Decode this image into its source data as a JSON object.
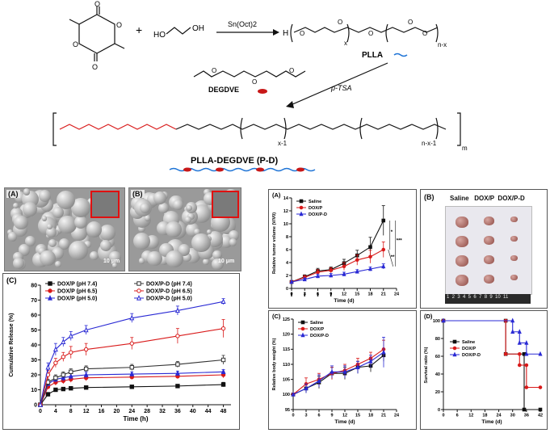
{
  "synthesis": {
    "reagent_catalyst": "Sn(Oct)2",
    "polymer1_label": "PLLA",
    "x_subscript": "x",
    "n_minus_x": "n-x",
    "h_label": "H",
    "ho_label": "HO",
    "oh_label": "OH",
    "crosslinker_label": "DEGDVE",
    "catalyst2": "p-TSA",
    "product_label": "PLLA-DEGDVE   (P-D)",
    "x_minus_1": "x-1",
    "n_x_1": "n-x-1",
    "m_subscript": "m",
    "colors": {
      "plla_wave": "#1f74d6",
      "degdve_dot": "#c81818"
    }
  },
  "sem": {
    "panel_a_label": "(A)",
    "panel_b_label": "(B)",
    "scale_a": "10 μm",
    "scale_b": "10 μm"
  },
  "chart_data": [
    {
      "id": "release",
      "panel_label": "(C)",
      "type": "line",
      "xlabel": "Time (h)",
      "ylabel": "Cumulative Release (%)",
      "xlim": [
        0,
        50
      ],
      "ylim": [
        0,
        80
      ],
      "xticks": [
        0,
        4,
        8,
        12,
        16,
        20,
        24,
        28,
        32,
        36,
        40,
        44,
        48
      ],
      "yticks": [
        0,
        10,
        20,
        30,
        40,
        50,
        60,
        70,
        80
      ],
      "legend_position": "top-left",
      "x": [
        0,
        2,
        4,
        6,
        8,
        12,
        24,
        36,
        48
      ],
      "series": [
        {
          "name": "DOX/P (pH 7.4)",
          "color": "#111111",
          "marker": "square",
          "filled": true,
          "values": [
            0,
            7,
            10,
            10.5,
            11,
            11.5,
            12,
            12.5,
            13.5
          ],
          "err": [
            0,
            1,
            1,
            1,
            1,
            1,
            1,
            1,
            1.5
          ]
        },
        {
          "name": "DOX/P (pH 6.5)",
          "color": "#d91a1a",
          "marker": "circle",
          "filled": true,
          "values": [
            0,
            12,
            15,
            16,
            17,
            18,
            18.5,
            19,
            20
          ],
          "err": [
            0,
            1.5,
            2,
            2,
            2,
            2,
            1.5,
            1.5,
            2
          ]
        },
        {
          "name": "DOX/P (pH 5.0)",
          "color": "#2a2ad4",
          "marker": "triangle",
          "filled": true,
          "values": [
            0,
            14,
            17,
            18,
            19,
            20,
            20.5,
            21,
            22
          ],
          "err": [
            0,
            1.5,
            2,
            2,
            2,
            2,
            1.5,
            1.5,
            1.5
          ]
        },
        {
          "name": "DOX/P-D (pH 7.4)",
          "color": "#333333",
          "marker": "square",
          "filled": false,
          "values": [
            0,
            15,
            18,
            20,
            22,
            24,
            25,
            27,
            30
          ],
          "err": [
            0,
            2,
            2,
            2,
            2,
            2,
            2,
            2,
            3
          ]
        },
        {
          "name": "DOX/P-D (pH 6.5)",
          "color": "#d91a1a",
          "marker": "circle",
          "filled": false,
          "values": [
            0,
            20,
            28,
            32,
            35,
            37,
            41,
            46,
            51
          ],
          "err": [
            0,
            3,
            3,
            3,
            4,
            4,
            4,
            5,
            6
          ]
        },
        {
          "name": "DOX/P-D (pH 5.0)",
          "color": "#2a2ad4",
          "marker": "triangle",
          "filled": false,
          "values": [
            0,
            25,
            37,
            42,
            46,
            50,
            58,
            63,
            69
          ],
          "err": [
            0,
            3,
            4,
            3,
            3,
            3,
            3,
            3,
            2
          ]
        }
      ]
    },
    {
      "id": "tumor_volume",
      "panel_label": "(A)",
      "type": "line",
      "xlabel": "Time (d)",
      "ylabel": "Relative tumor volume (V/V0)",
      "xlim": [
        0,
        24
      ],
      "ylim": [
        0,
        14
      ],
      "xticks": [
        0,
        3,
        6,
        9,
        12,
        15,
        18,
        21,
        24
      ],
      "yticks": [
        0,
        2,
        4,
        6,
        8,
        10,
        12,
        14
      ],
      "legend_position": "top-left",
      "dose_days": [
        0,
        3,
        6,
        9
      ],
      "annotations": [
        "*",
        "**",
        "***"
      ],
      "x": [
        0,
        3,
        6,
        9,
        12,
        15,
        18,
        21
      ],
      "series": [
        {
          "name": "Saline",
          "color": "#111111",
          "marker": "square",
          "values": [
            1,
            1.8,
            2.7,
            2.9,
            3.9,
            5.1,
            6.4,
            10.5
          ],
          "err": [
            0,
            0.3,
            0.4,
            0.4,
            0.6,
            0.8,
            1.5,
            2.3
          ]
        },
        {
          "name": "DOX/P",
          "color": "#d91a1a",
          "marker": "circle",
          "values": [
            1,
            1.7,
            2.5,
            2.8,
            3.4,
            4.4,
            4.9,
            6.0
          ],
          "err": [
            0,
            0.3,
            0.4,
            0.4,
            0.6,
            0.8,
            1.0,
            1.2
          ]
        },
        {
          "name": "DOX/P-D",
          "color": "#2a2ad4",
          "marker": "triangle",
          "values": [
            1,
            1.4,
            1.9,
            2.0,
            2.2,
            2.6,
            3.0,
            3.4
          ],
          "err": [
            0,
            0.2,
            0.3,
            0.3,
            0.3,
            0.3,
            0.3,
            0.4
          ]
        }
      ]
    },
    {
      "id": "body_weight",
      "panel_label": "(C)",
      "type": "line",
      "xlabel": "Time (d)",
      "ylabel": "Relative body weight (%)",
      "xlim": [
        0,
        24
      ],
      "ylim": [
        95,
        125
      ],
      "xticks": [
        0,
        3,
        6,
        9,
        12,
        15,
        18,
        21,
        24
      ],
      "yticks": [
        95,
        100,
        105,
        110,
        115,
        120,
        125
      ],
      "legend_position": "top-left",
      "x": [
        0,
        3,
        6,
        9,
        12,
        15,
        18,
        21
      ],
      "series": [
        {
          "name": "Saline",
          "color": "#111111",
          "marker": "square",
          "values": [
            100,
            102,
            104,
            107,
            107,
            109,
            109.5,
            113
          ],
          "err": [
            0,
            1.5,
            2,
            2,
            2,
            2,
            2,
            2
          ]
        },
        {
          "name": "DOX/P",
          "color": "#d91a1a",
          "marker": "circle",
          "values": [
            100,
            103.5,
            105,
            107,
            108,
            110,
            112,
            115
          ],
          "err": [
            0,
            2,
            2,
            2,
            2,
            2,
            2,
            3
          ]
        },
        {
          "name": "DOX/P-D",
          "color": "#2a2ad4",
          "marker": "triangle",
          "values": [
            100,
            102,
            104.5,
            107.5,
            107.5,
            109,
            111,
            114
          ],
          "err": [
            0,
            1.5,
            2,
            2,
            2,
            2,
            2,
            5
          ]
        }
      ]
    },
    {
      "id": "survival",
      "panel_label": "(D)",
      "type": "line",
      "step": true,
      "xlabel": "Time (d)",
      "ylabel": "Survival ratio (%)",
      "xlim": [
        0,
        42
      ],
      "ylim": [
        0,
        100
      ],
      "xticks": [
        0,
        6,
        12,
        18,
        24,
        30,
        36,
        42
      ],
      "yticks": [
        0,
        20,
        40,
        60,
        80,
        100
      ],
      "legend_position": "top-left",
      "series": [
        {
          "name": "Saline",
          "color": "#111111",
          "marker": "square",
          "x": [
            0,
            27,
            27,
            35,
            35,
            42
          ],
          "values": [
            100,
            100,
            62.5,
            62.5,
            0,
            0
          ]
        },
        {
          "name": "DOX/P",
          "color": "#d91a1a",
          "marker": "circle",
          "x": [
            0,
            27,
            27,
            33,
            33,
            36,
            36,
            42
          ],
          "values": [
            100,
            100,
            62.5,
            62.5,
            50,
            50,
            25,
            25
          ]
        },
        {
          "name": "DOX/P-D",
          "color": "#2a2ad4",
          "marker": "triangle",
          "x": [
            0,
            30,
            30,
            33,
            33,
            36,
            36,
            42
          ],
          "values": [
            100,
            100,
            87.5,
            87.5,
            75,
            75,
            62.5,
            62.5
          ]
        }
      ]
    }
  ],
  "tumor_photo": {
    "panel_label": "(B)",
    "header": "Saline   DOX/P  DOX/P-D",
    "ruler_text": "1  2  3  4  5  6  7  8  9  10  11"
  }
}
